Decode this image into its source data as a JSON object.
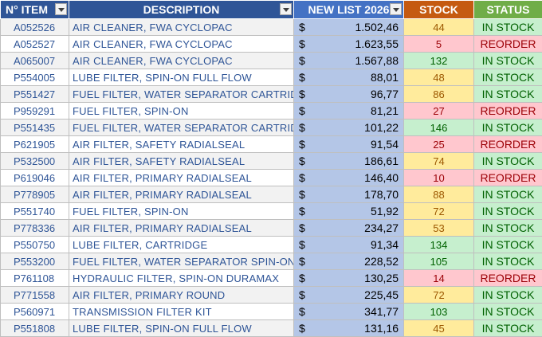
{
  "headers": {
    "item": "N° ITEM",
    "description": "DESCRIPTION",
    "price": "NEW LIST 2026",
    "stock": "STOCK",
    "status": "STATUS"
  },
  "currency_symbol": "$",
  "rows": [
    {
      "item": "A052526",
      "description": "AIR CLEANER, FWA CYCLOPAC",
      "price": "1.502,46",
      "stock": "44",
      "status": "IN STOCK",
      "level": "warn"
    },
    {
      "item": "A052527",
      "description": "AIR CLEANER, FWA CYCLOPAC",
      "price": "1.623,55",
      "stock": "5",
      "status": "REORDER",
      "level": "low"
    },
    {
      "item": "A065007",
      "description": "AIR CLEANER, FWA CYCLOPAC",
      "price": "1.567,88",
      "stock": "132",
      "status": "IN STOCK",
      "level": "ok"
    },
    {
      "item": "P554005",
      "description": "LUBE FILTER, SPIN-ON FULL FLOW",
      "price": "88,01",
      "stock": "48",
      "status": "IN STOCK",
      "level": "warn"
    },
    {
      "item": "P551427",
      "description": "FUEL FILTER, WATER SEPARATOR CARTRIDGE",
      "price": "96,77",
      "stock": "86",
      "status": "IN STOCK",
      "level": "warn"
    },
    {
      "item": "P959291",
      "description": "FUEL FILTER, SPIN-ON",
      "price": "81,21",
      "stock": "27",
      "status": "REORDER",
      "level": "low"
    },
    {
      "item": "P551435",
      "description": "FUEL FILTER, WATER SEPARATOR CARTRIDGE",
      "price": "101,22",
      "stock": "146",
      "status": "IN STOCK",
      "level": "ok"
    },
    {
      "item": "P621905",
      "description": "AIR FILTER, SAFETY RADIALSEAL",
      "price": "91,54",
      "stock": "25",
      "status": "REORDER",
      "level": "low"
    },
    {
      "item": "P532500",
      "description": "AIR FILTER, SAFETY RADIALSEAL",
      "price": "186,61",
      "stock": "74",
      "status": "IN STOCK",
      "level": "warn"
    },
    {
      "item": "P619046",
      "description": "AIR FILTER, PRIMARY RADIALSEAL",
      "price": "146,40",
      "stock": "10",
      "status": "REORDER",
      "level": "low"
    },
    {
      "item": "P778905",
      "description": "AIR FILTER, PRIMARY RADIALSEAL",
      "price": "178,70",
      "stock": "88",
      "status": "IN STOCK",
      "level": "warn"
    },
    {
      "item": "P551740",
      "description": "FUEL FILTER, SPIN-ON",
      "price": "51,92",
      "stock": "72",
      "status": "IN STOCK",
      "level": "warn"
    },
    {
      "item": "P778336",
      "description": "AIR FILTER, PRIMARY RADIALSEAL",
      "price": "234,27",
      "stock": "53",
      "status": "IN STOCK",
      "level": "warn"
    },
    {
      "item": "P550750",
      "description": "LUBE FILTER, CARTRIDGE",
      "price": "91,34",
      "stock": "134",
      "status": "IN STOCK",
      "level": "ok"
    },
    {
      "item": "P553200",
      "description": "FUEL FILTER, WATER SEPARATOR SPIN-ON",
      "price": "228,52",
      "stock": "105",
      "status": "IN STOCK",
      "level": "ok"
    },
    {
      "item": "P761108",
      "description": "HYDRAULIC FILTER, SPIN-ON DURAMAX",
      "price": "130,25",
      "stock": "14",
      "status": "REORDER",
      "level": "low"
    },
    {
      "item": "P771558",
      "description": "AIR FILTER, PRIMARY ROUND",
      "price": "225,45",
      "stock": "72",
      "status": "IN STOCK",
      "level": "warn"
    },
    {
      "item": "P560971",
      "description": "TRANSMISSION FILTER KIT",
      "price": "341,77",
      "stock": "103",
      "status": "IN STOCK",
      "level": "ok"
    },
    {
      "item": "P551808",
      "description": "LUBE FILTER, SPIN-ON FULL FLOW",
      "price": "131,16",
      "stock": "45",
      "status": "IN STOCK",
      "level": "warn"
    }
  ]
}
